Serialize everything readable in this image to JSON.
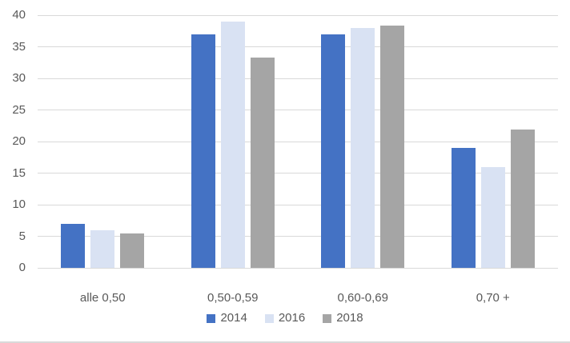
{
  "chart": {
    "background": "#FFFFFF",
    "text_color": "#595959",
    "gridline_color": "#D9D9D9",
    "bottom_border_color": "#D9D9D9"
  },
  "chart_data": {
    "type": "bar",
    "title": "",
    "xlabel": "",
    "ylabel": "",
    "categories": [
      "alle 0,50",
      "0,50-0,59",
      "0,60-0,69",
      "0,70 +"
    ],
    "series": [
      {
        "name": "2014",
        "color": "#4472C4",
        "values": [
          7,
          37,
          37,
          19
        ]
      },
      {
        "name": "2016",
        "color": "#D9E2F3",
        "values": [
          6,
          39,
          38,
          16
        ]
      },
      {
        "name": "2018",
        "color": "#A5A5A5",
        "values": [
          5.4,
          33.3,
          38.3,
          21.9
        ]
      }
    ],
    "ylim": [
      0,
      40
    ],
    "yticks": [
      0,
      5,
      10,
      15,
      20,
      25,
      30,
      35,
      40
    ],
    "grid": true,
    "legend_position": "bottom"
  }
}
